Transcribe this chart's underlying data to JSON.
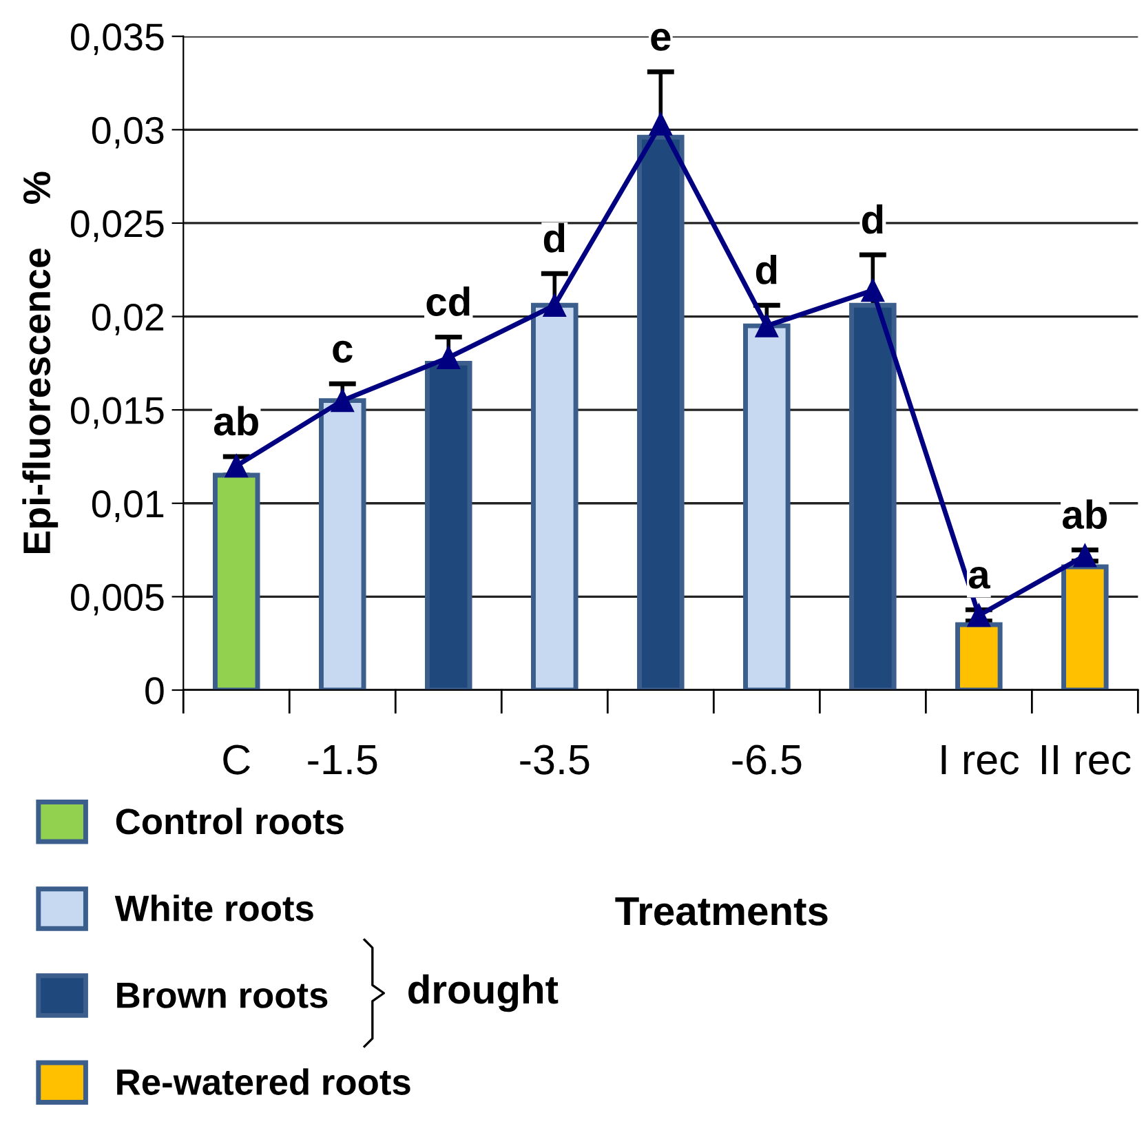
{
  "chart_data": {
    "type": "bar",
    "ylabel": "Epi-fluorescence    %",
    "xlabel": "Treatments",
    "categories": [
      "C",
      "-1.5",
      null,
      "-3.5",
      null,
      "-6.5",
      null,
      "I rec",
      "II rec"
    ],
    "series": [
      {
        "name": "Control roots",
        "color": "#92d050",
        "values": [
          0.0115,
          null,
          null,
          null,
          null,
          null,
          null,
          null,
          null
        ]
      },
      {
        "name": "White roots",
        "color": "#c6d9f1",
        "values": [
          null,
          0.0155,
          null,
          0.0206,
          null,
          0.0195,
          null,
          null,
          null
        ]
      },
      {
        "name": "Brown roots",
        "color": "#1f497d",
        "values": [
          null,
          null,
          0.0175,
          null,
          0.0296,
          null,
          0.0206,
          null,
          null
        ]
      },
      {
        "name": "Re-watered roots",
        "color": "#ffc000",
        "values": [
          null,
          null,
          null,
          null,
          null,
          null,
          null,
          0.0035,
          0.0066
        ]
      },
      {
        "type": "line",
        "color": "#000080",
        "marker": "triangle",
        "values": [
          0.012,
          0.0155,
          0.0178,
          0.0206,
          0.0303,
          0.0195,
          0.0214,
          0.004,
          0.0072
        ],
        "errors": [
          0.0005,
          0.0009,
          0.0011,
          0.0017,
          0.0028,
          0.0011,
          0.0019,
          0.0003,
          0.0003
        ]
      }
    ],
    "annotations": [
      "ab",
      "c",
      "cd",
      "d",
      "e",
      "d",
      "d",
      "a",
      "ab",
      "drought"
    ],
    "ylim": [
      0,
      0.035
    ],
    "yticks": [
      0,
      {
        "value": 0.005,
        "label": "0,005"
      },
      {
        "value": 0.01,
        "label": "0,01"
      },
      {
        "value": 0.015,
        "label": "0,015"
      },
      {
        "value": 0.02,
        "label": "0,02"
      },
      {
        "value": 0.025,
        "label": "0,025"
      },
      {
        "value": 0.03,
        "label": "0,03"
      },
      {
        "value": 0.035,
        "label": "0,035"
      }
    ],
    "grid": "y",
    "legend": "bottom left"
  }
}
